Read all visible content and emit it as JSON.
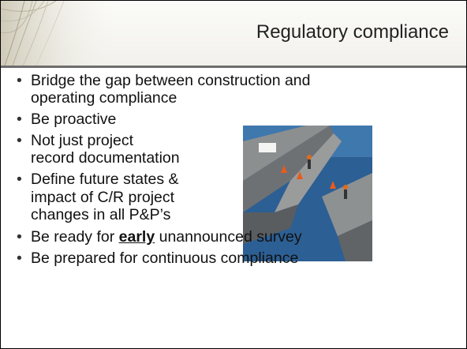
{
  "header": {
    "title": "Regulatory compliance"
  },
  "bullets": [
    {
      "lines": [
        "Bridge the gap between construction and",
        "operating compliance"
      ]
    },
    {
      "lines": [
        "Be proactive"
      ]
    },
    {
      "lines": [
        "Not just project",
        "record documentation"
      ]
    },
    {
      "lines": [
        "Define future states &",
        "impact of C/R project",
        "changes in all P&P’s"
      ]
    },
    {
      "before": "Be ready for ",
      "emphasis": "early",
      "after": " unannounced survey"
    },
    {
      "lines": [
        "Be prepared for continuous compliance"
      ]
    }
  ]
}
